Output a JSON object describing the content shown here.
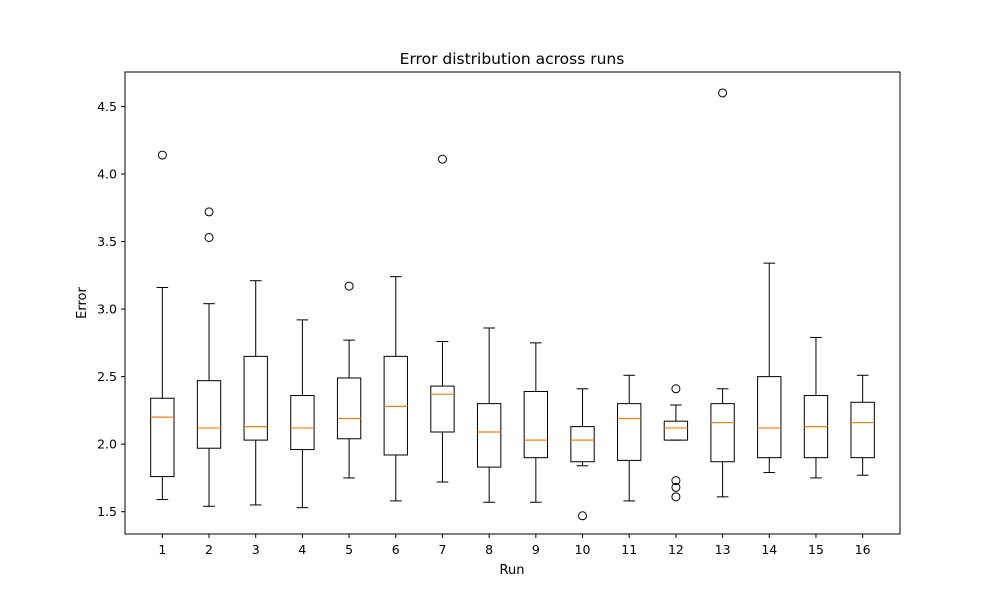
{
  "chart_data": {
    "type": "box",
    "title": "Error distribution across runs",
    "xlabel": "Run",
    "ylabel": "Error",
    "ylim": [
      1.335,
      4.755
    ],
    "yticks": [
      1.5,
      2.0,
      2.5,
      3.0,
      3.5,
      4.0,
      4.5
    ],
    "ytick_labels": [
      "1.5",
      "2.0",
      "2.5",
      "3.0",
      "3.5",
      "4.0",
      "4.5"
    ],
    "categories": [
      "1",
      "2",
      "3",
      "4",
      "5",
      "6",
      "7",
      "8",
      "9",
      "10",
      "11",
      "12",
      "13",
      "14",
      "15",
      "16"
    ],
    "grid": false,
    "colors": {
      "box": "#000000",
      "median": "#ff7f0e",
      "background": "#ffffff"
    },
    "boxes": [
      {
        "label": "1",
        "whisker_low": 1.59,
        "q1": 1.76,
        "median": 2.2,
        "q3": 2.34,
        "whisker_high": 3.16,
        "outliers": [
          4.14
        ]
      },
      {
        "label": "2",
        "whisker_low": 1.54,
        "q1": 1.97,
        "median": 2.12,
        "q3": 2.47,
        "whisker_high": 3.04,
        "outliers": [
          3.72,
          3.53
        ]
      },
      {
        "label": "3",
        "whisker_low": 1.55,
        "q1": 2.03,
        "median": 2.13,
        "q3": 2.65,
        "whisker_high": 3.21,
        "outliers": []
      },
      {
        "label": "4",
        "whisker_low": 1.53,
        "q1": 1.96,
        "median": 2.12,
        "q3": 2.36,
        "whisker_high": 2.92,
        "outliers": []
      },
      {
        "label": "5",
        "whisker_low": 1.75,
        "q1": 2.04,
        "median": 2.19,
        "q3": 2.49,
        "whisker_high": 2.77,
        "outliers": [
          3.17
        ]
      },
      {
        "label": "6",
        "whisker_low": 1.58,
        "q1": 1.92,
        "median": 2.28,
        "q3": 2.65,
        "whisker_high": 3.24,
        "outliers": []
      },
      {
        "label": "7",
        "whisker_low": 1.72,
        "q1": 2.09,
        "median": 2.37,
        "q3": 2.43,
        "whisker_high": 2.76,
        "outliers": [
          4.11
        ]
      },
      {
        "label": "8",
        "whisker_low": 1.57,
        "q1": 1.83,
        "median": 2.09,
        "q3": 2.3,
        "whisker_high": 2.86,
        "outliers": []
      },
      {
        "label": "9",
        "whisker_low": 1.57,
        "q1": 1.9,
        "median": 2.03,
        "q3": 2.39,
        "whisker_high": 2.75,
        "outliers": []
      },
      {
        "label": "10",
        "whisker_low": 1.84,
        "q1": 1.87,
        "median": 2.03,
        "q3": 2.13,
        "whisker_high": 2.41,
        "outliers": [
          1.47
        ]
      },
      {
        "label": "11",
        "whisker_low": 1.58,
        "q1": 1.88,
        "median": 2.19,
        "q3": 2.3,
        "whisker_high": 2.51,
        "outliers": []
      },
      {
        "label": "12",
        "whisker_low": 2.03,
        "q1": 2.03,
        "median": 2.12,
        "q3": 2.17,
        "whisker_high": 2.29,
        "outliers": [
          2.41,
          1.73,
          1.68,
          1.61
        ]
      },
      {
        "label": "13",
        "whisker_low": 1.61,
        "q1": 1.87,
        "median": 2.16,
        "q3": 2.3,
        "whisker_high": 2.41,
        "outliers": [
          4.6
        ]
      },
      {
        "label": "14",
        "whisker_low": 1.79,
        "q1": 1.9,
        "median": 2.12,
        "q3": 2.5,
        "whisker_high": 3.34,
        "outliers": []
      },
      {
        "label": "15",
        "whisker_low": 1.75,
        "q1": 1.9,
        "median": 2.13,
        "q3": 2.36,
        "whisker_high": 2.79,
        "outliers": []
      },
      {
        "label": "16",
        "whisker_low": 1.77,
        "q1": 1.9,
        "median": 2.16,
        "q3": 2.31,
        "whisker_high": 2.51,
        "outliers": []
      }
    ]
  }
}
